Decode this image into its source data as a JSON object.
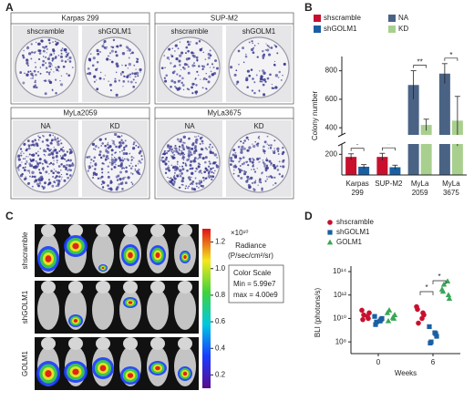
{
  "panels": {
    "a": {
      "label": "A",
      "groups": [
        {
          "title": "Karpas 299",
          "dishes": [
            "shscramble",
            "shGOLM1"
          ]
        },
        {
          "title": "SUP-M2",
          "dishes": [
            "shscramble",
            "shGOLM1"
          ]
        },
        {
          "title": "MyLa2059",
          "dishes": [
            "NA",
            "KD"
          ]
        },
        {
          "title": "MyLa3675",
          "dishes": [
            "NA",
            "KD"
          ]
        }
      ]
    },
    "b": {
      "label": "B"
    },
    "c": {
      "label": "C",
      "rows": [
        "shscramble",
        "shGOLM1",
        "GOLM1"
      ],
      "colorbar": {
        "unit": "×10¹⁰",
        "title": "Radiance",
        "units": "(P/sec/cm²/sr)",
        "lim": [
          0.1,
          1.3
        ],
        "ticks": [
          0.2,
          0.4,
          0.6,
          0.8,
          {
            "value": 1,
            "label": "1.0"
          },
          1.2
        ]
      },
      "scale": {
        "title": "Color Scale",
        "min": "Min = 5.99e7",
        "max": "max = 4.00e9"
      }
    },
    "d": {
      "label": "D"
    }
  },
  "chart_data": [
    {
      "type": "bar",
      "ylabel": "Colony number",
      "categories": [
        [
          "Karpas",
          "299"
        ],
        [
          "SUP-M2"
        ],
        [
          "MyLa",
          "2059"
        ],
        [
          "MyLa",
          "3675"
        ]
      ],
      "series": [
        {
          "name": "shscramble",
          "color": "#c8102e",
          "values": [
            175,
            175,
            null,
            null
          ],
          "errors": [
            30,
            35,
            null,
            null
          ]
        },
        {
          "name": "shGOLM1",
          "color": "#1b5fa3",
          "values": [
            80,
            75,
            null,
            null
          ],
          "errors": [
            20,
            20,
            null,
            null
          ]
        },
        {
          "name": "NA",
          "color": "#4a6385",
          "values": [
            null,
            null,
            700,
            780
          ],
          "errors": [
            null,
            null,
            100,
            70
          ]
        },
        {
          "name": "KD",
          "color": "#a9cf8f",
          "values": [
            null,
            null,
            420,
            450
          ],
          "errors": [
            null,
            null,
            40,
            170
          ]
        }
      ],
      "ylim": [
        0,
        900
      ],
      "ybreak": [
        300,
        350
      ],
      "yticks": [
        200,
        400,
        600,
        800
      ],
      "annotations": [
        "*",
        "*",
        "**",
        "*"
      ],
      "legend": "top"
    },
    {
      "type": "scatter",
      "ylabel": "BLI (photons/s)",
      "xlabel": "Weeks",
      "categories": [
        "0",
        "6"
      ],
      "log_y": true,
      "ylim": [
        10000000.0,
        100000000000000.0
      ],
      "yticks": [
        {
          "value": 100000000.0,
          "label": "10⁸"
        },
        {
          "value": 10000000000.0,
          "label": "10¹⁰"
        },
        {
          "value": 1000000000000.0,
          "label": "10¹²"
        },
        {
          "value": 100000000000000.0,
          "label": "10¹⁴"
        }
      ],
      "series": [
        {
          "name": "shscramble",
          "color": "#c8102e",
          "marker": "circle",
          "values": [
            [
              50000000000.0,
              10000000000.0,
              20000000000.0,
              30000000000.0,
              8000000000.0,
              15000000000.0
            ],
            [
              100000000000.0,
              30000000000.0,
              4000000000.0,
              20000000000.0,
              60000000000.0,
              10000000000.0
            ]
          ]
        },
        {
          "name": "shGOLM1",
          "color": "#1b5fa3",
          "marker": "square",
          "values": [
            [
              15000000000.0,
              8000000000.0,
              5000000000.0,
              10000000000.0,
              3000000000.0,
              6000000000.0
            ],
            [
              2000000000.0,
              500000000.0,
              100000000.0,
              300000000.0,
              80000000.0,
              600000000.0
            ]
          ]
        },
        {
          "name": "GOLM1",
          "color": "#3aa655",
          "marker": "triangle",
          "values": [
            [
              30000000000.0,
              10000000000.0,
              50000000000.0,
              20000000000.0,
              6000000000.0,
              12000000000.0
            ],
            [
              3000000000000.0,
              1000000000000.0,
              8000000000000.0,
              500000000000.0,
              2000000000000.0,
              15000000000000.0
            ]
          ]
        }
      ],
      "annotations": [
        "*",
        "*"
      ],
      "legend": "top-left"
    }
  ]
}
